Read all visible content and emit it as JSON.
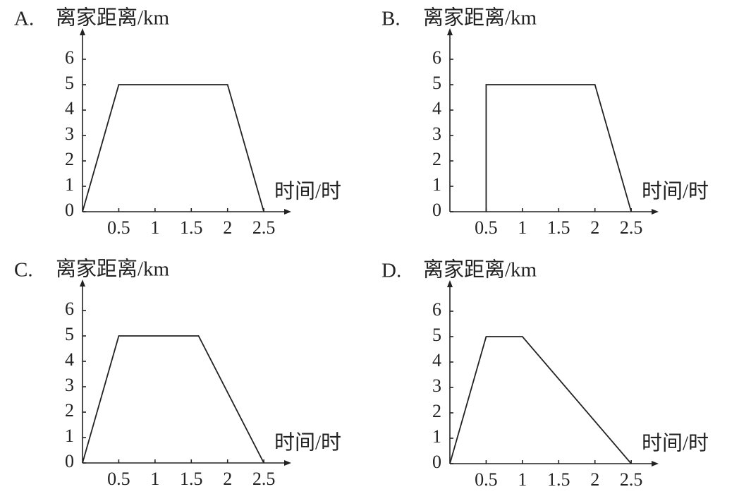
{
  "chart_data": [
    {
      "type": "line",
      "title": "A.",
      "y_label": "离家距离/km",
      "x_label": "时间/时",
      "x": [
        0,
        0.5,
        2,
        2.5
      ],
      "values": [
        0,
        5,
        5,
        0
      ],
      "color": "#222222",
      "xlim": [
        0,
        2.8
      ],
      "ylim": [
        0,
        7
      ],
      "xticks": [
        0.5,
        1,
        1.5,
        2,
        2.5
      ],
      "yticks": [
        0,
        1,
        2,
        3,
        4,
        5,
        6
      ]
    },
    {
      "type": "line",
      "title": "B.",
      "y_label": "离家距离/km",
      "x_label": "时间/时",
      "x": [
        0.5,
        0.5,
        2,
        2.5
      ],
      "values": [
        0,
        5,
        5,
        0
      ],
      "color": "#222222",
      "xlim": [
        0,
        2.8
      ],
      "ylim": [
        0,
        7
      ],
      "xticks": [
        0.5,
        1,
        1.5,
        2,
        2.5
      ],
      "yticks": [
        0,
        1,
        2,
        3,
        4,
        5,
        6
      ]
    },
    {
      "type": "line",
      "title": "C.",
      "y_label": "离家距离/km",
      "x_label": "时间/时",
      "x": [
        0,
        0.5,
        1.6,
        2.5
      ],
      "values": [
        0,
        5,
        5,
        0
      ],
      "color": "#222222",
      "xlim": [
        0,
        2.8
      ],
      "ylim": [
        0,
        7
      ],
      "xticks": [
        0.5,
        1,
        1.5,
        2,
        2.5
      ],
      "yticks": [
        0,
        1,
        2,
        3,
        4,
        5,
        6
      ]
    },
    {
      "type": "line",
      "title": "D.",
      "y_label": "离家距离/km",
      "x_label": "时间/时",
      "x": [
        0,
        0.5,
        1,
        2.5
      ],
      "values": [
        0,
        5,
        5,
        0
      ],
      "color": "#222222",
      "xlim": [
        0,
        2.8
      ],
      "ylim": [
        0,
        7
      ],
      "xticks": [
        0.5,
        1,
        1.5,
        2,
        2.5
      ],
      "yticks": [
        0,
        1,
        2,
        3,
        4,
        5,
        6
      ]
    }
  ]
}
